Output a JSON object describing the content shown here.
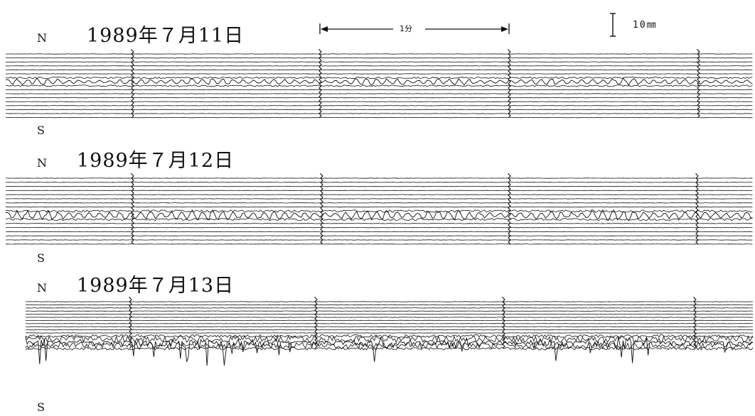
{
  "figure": {
    "time_marker_label": "1分",
    "scale_label": "10㎜",
    "colors": {
      "ink": "#111111",
      "paper": "#ffffff"
    },
    "panels": [
      {
        "north_label": "N",
        "south_label": "S",
        "date": "1989年７月11日",
        "activity": "low"
      },
      {
        "north_label": "N",
        "south_label": "S",
        "date": "1989年７月12日",
        "activity": "moderate"
      },
      {
        "north_label": "N",
        "south_label": "S",
        "date": "1989年７月13日",
        "activity": "high"
      }
    ]
  }
}
